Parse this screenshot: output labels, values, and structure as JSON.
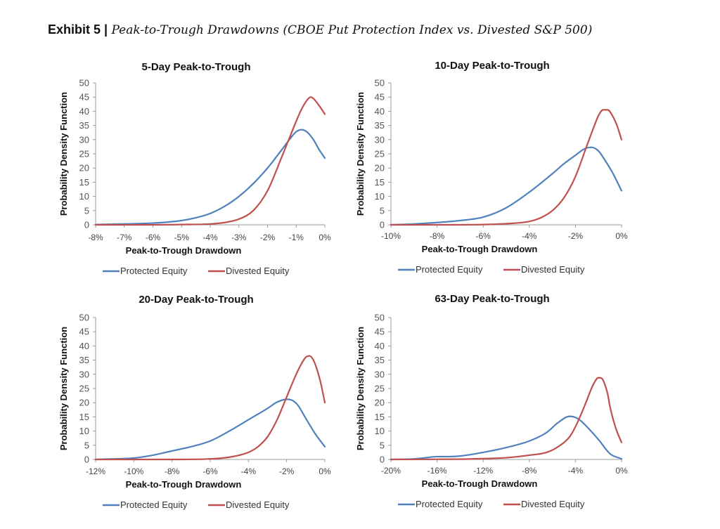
{
  "exhibit": {
    "label": "Exhibit 5 |",
    "text": "Peak-to-Trough Drawdowns (CBOE Put Protection Index vs. Divested S&P 500)"
  },
  "colors": {
    "protected": "#4F81BD",
    "divested": "#C0504D",
    "axis": "#999999"
  },
  "chart_data": [
    {
      "type": "line",
      "title": "5-Day Peak-to-Trough",
      "xlabel": "Peak-to-Trough Drawdown",
      "ylabel": "Probability Density Function",
      "xlim": [
        -8,
        0
      ],
      "ylim": [
        0,
        50
      ],
      "xticks": [
        -8,
        -7,
        -6,
        -5,
        -4,
        -3,
        -2,
        -1,
        0
      ],
      "xtick_labels": [
        "-8%",
        "-7%",
        "-6%",
        "-5%",
        "-4%",
        "-3%",
        "-2%",
        "-1%",
        "0%"
      ],
      "yticks": [
        0,
        5,
        10,
        15,
        20,
        25,
        30,
        35,
        40,
        45,
        50
      ],
      "legend": "bottom",
      "series": [
        {
          "name": "Protected Equity",
          "color": "#4F81BD",
          "x": [
            -8,
            -7,
            -6,
            -5,
            -4.5,
            -4,
            -3.5,
            -3,
            -2.5,
            -2,
            -1.5,
            -1.2,
            -1,
            -0.8,
            -0.6,
            -0.4,
            -0.2,
            0
          ],
          "y": [
            0.1,
            0.3,
            0.6,
            1.5,
            2.5,
            4,
            6.5,
            10,
            14.5,
            20,
            26.5,
            30.5,
            32.8,
            33.5,
            32.5,
            30,
            26.5,
            23.5
          ]
        },
        {
          "name": "Divested Equity",
          "color": "#C0504D",
          "x": [
            -8,
            -6,
            -5,
            -4,
            -3.5,
            -3,
            -2.5,
            -2,
            -1.5,
            -1.2,
            -1,
            -0.8,
            -0.6,
            -0.5,
            -0.4,
            -0.2,
            0
          ],
          "y": [
            0,
            0,
            0.1,
            0.3,
            0.8,
            2,
            5,
            12,
            24,
            31.5,
            36.5,
            41,
            44.2,
            45,
            44.5,
            42,
            39
          ]
        }
      ]
    },
    {
      "type": "line",
      "title": "10-Day Peak-to-Trough",
      "xlabel": "Peak-to-Trough Drawdown",
      "ylabel": "Probability Density Function",
      "xlim": [
        -10,
        0
      ],
      "ylim": [
        0,
        50
      ],
      "xticks": [
        -10,
        -8,
        -6,
        -4,
        -2,
        0
      ],
      "xtick_labels": [
        "-10%",
        "-8%",
        "-6%",
        "-4%",
        "-2%",
        "0%"
      ],
      "yticks": [
        0,
        5,
        10,
        15,
        20,
        25,
        30,
        35,
        40,
        45,
        50
      ],
      "legend": "bottom",
      "series": [
        {
          "name": "Protected Equity",
          "color": "#4F81BD",
          "x": [
            -10,
            -9,
            -8,
            -7,
            -6,
            -5,
            -4,
            -3,
            -2.5,
            -2,
            -1.6,
            -1.3,
            -1,
            -0.7,
            -0.4,
            0
          ],
          "y": [
            0,
            0.3,
            0.8,
            1.5,
            2.7,
            6,
            11.5,
            18,
            21.5,
            24.5,
            26.8,
            27.3,
            26,
            22.5,
            18.5,
            12
          ]
        },
        {
          "name": "Divested Equity",
          "color": "#C0504D",
          "x": [
            -10,
            -8,
            -6,
            -5,
            -4,
            -3.5,
            -3,
            -2.5,
            -2,
            -1.5,
            -1.2,
            -1,
            -0.8,
            -0.6,
            -0.4,
            -0.2,
            0
          ],
          "y": [
            0,
            0,
            0.1,
            0.4,
            1.2,
            2.5,
            5,
            9.5,
            17,
            28,
            34.5,
            38.5,
            40.5,
            40.5,
            38.5,
            35,
            30
          ]
        }
      ]
    },
    {
      "type": "line",
      "title": "20-Day Peak-to-Trough",
      "xlabel": "Peak-to-Trough Drawdown",
      "ylabel": "Probability Density Function",
      "xlim": [
        -12,
        0
      ],
      "ylim": [
        0,
        50
      ],
      "xticks": [
        -12,
        -10,
        -8,
        -6,
        -4,
        -2,
        0
      ],
      "xtick_labels": [
        "-12%",
        "-10%",
        "-8%",
        "-6%",
        "-4%",
        "-2%",
        "0%"
      ],
      "yticks": [
        0,
        5,
        10,
        15,
        20,
        25,
        30,
        35,
        40,
        45,
        50
      ],
      "legend": "bottom",
      "series": [
        {
          "name": "Protected Equity",
          "color": "#4F81BD",
          "x": [
            -12,
            -11,
            -10,
            -9,
            -8,
            -7,
            -6,
            -5,
            -4,
            -3,
            -2.5,
            -2,
            -1.7,
            -1.4,
            -1,
            -0.5,
            0
          ],
          "y": [
            0,
            0.2,
            0.5,
            1.5,
            3,
            4.5,
            6.5,
            10,
            14,
            18,
            20.2,
            21.2,
            20.8,
            19,
            14.5,
            9,
            4.5
          ]
        },
        {
          "name": "Divested Equity",
          "color": "#C0504D",
          "x": [
            -12,
            -8,
            -6,
            -5,
            -4,
            -3.5,
            -3,
            -2.5,
            -2,
            -1.5,
            -1.2,
            -1,
            -0.8,
            -0.6,
            -0.4,
            -0.2,
            0
          ],
          "y": [
            0,
            0,
            0.2,
            0.8,
            2.5,
            4.5,
            8,
            14,
            22,
            30,
            34,
            36,
            36.5,
            35,
            31.5,
            26.5,
            20
          ]
        }
      ]
    },
    {
      "type": "line",
      "title": "63-Day Peak-to-Trough",
      "xlabel": "Peak-to-Trough Drawdown",
      "ylabel": "Probability Density Function",
      "xlim": [
        -20,
        0
      ],
      "ylim": [
        0,
        50
      ],
      "xticks": [
        -20,
        -16,
        -12,
        -8,
        -4,
        0
      ],
      "xtick_labels": [
        "-20%",
        "-16%",
        "-12%",
        "-8%",
        "-4%",
        "0%"
      ],
      "yticks": [
        0,
        5,
        10,
        15,
        20,
        25,
        30,
        35,
        40,
        45,
        50
      ],
      "legend": "bottom",
      "series": [
        {
          "name": "Protected Equity",
          "color": "#4F81BD",
          "x": [
            -20,
            -18,
            -17,
            -16,
            -15,
            -14,
            -12,
            -10,
            -8,
            -6.5,
            -5.5,
            -4.5,
            -4,
            -3.5,
            -3,
            -2,
            -1,
            0
          ],
          "y": [
            0,
            0.2,
            0.6,
            1,
            1,
            1.2,
            2.5,
            4.2,
            6.5,
            9.5,
            13,
            15.2,
            14.8,
            13.5,
            11.5,
            7,
            2,
            0.2
          ]
        },
        {
          "name": "Divested Equity",
          "color": "#C0504D",
          "x": [
            -20,
            -14,
            -12,
            -10,
            -8,
            -6.5,
            -5.5,
            -4.5,
            -4,
            -3.5,
            -3,
            -2.5,
            -2,
            -1.7,
            -1.5,
            -1.2,
            -1,
            -0.5,
            0
          ],
          "y": [
            0,
            0.1,
            0.3,
            0.6,
            1.5,
            2.5,
            4.5,
            8,
            11.5,
            16,
            21,
            26,
            28.8,
            28.5,
            27,
            23,
            18.5,
            11,
            6
          ]
        }
      ]
    }
  ]
}
